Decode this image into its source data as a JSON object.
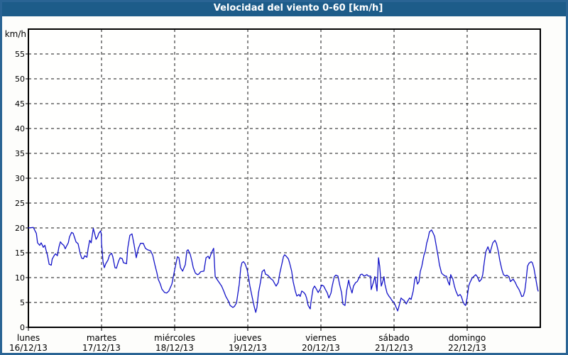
{
  "window": {
    "title": "Velocidad del viento 0-60 [km/h]"
  },
  "colors": {
    "titlebar_bg": "#1d5c89",
    "frame_border": "#2a6494",
    "title_text": "#ffffff",
    "page_bg": "#fdfdfb",
    "plot_bg": "#fffffe",
    "grid": "#161616",
    "axis": "#000000",
    "tick_text": "#000000",
    "line": "#1414c8"
  },
  "chart_data": {
    "type": "line",
    "title": "Velocidad del viento 0-60 [km/h]",
    "ylabel": "km/h",
    "ylim": [
      0,
      60
    ],
    "yticks": [
      0,
      5,
      10,
      15,
      20,
      25,
      30,
      35,
      40,
      45,
      50,
      55
    ],
    "grid": "dashed",
    "legend": "none",
    "x_axis": {
      "unit": "hours",
      "range_hours": [
        0,
        168
      ],
      "days": [
        {
          "name": "lunes",
          "date": "16/12/13"
        },
        {
          "name": "martes",
          "date": "17/12/13"
        },
        {
          "name": "miércoles",
          "date": "18/12/13"
        },
        {
          "name": "jueves",
          "date": "19/12/13"
        },
        {
          "name": "viernes",
          "date": "20/12/13"
        },
        {
          "name": "sábado",
          "date": "21/12/13"
        },
        {
          "name": "domingo",
          "date": "22/12/13"
        }
      ]
    },
    "series": [
      {
        "name": "velocidad del viento",
        "color": "#1414c8",
        "points": [
          [
            0,
            20.0
          ],
          [
            1.6,
            20.1
          ],
          [
            2.6,
            18.9
          ],
          [
            3.0,
            17.0
          ],
          [
            3.7,
            16.5
          ],
          [
            4.2,
            17.0
          ],
          [
            4.9,
            16.1
          ],
          [
            5.4,
            16.5
          ],
          [
            5.8,
            15.5
          ],
          [
            6.3,
            14.4
          ],
          [
            6.8,
            12.7
          ],
          [
            7.5,
            12.5
          ],
          [
            7.8,
            13.7
          ],
          [
            8.4,
            14.4
          ],
          [
            8.9,
            14.8
          ],
          [
            9.5,
            14.4
          ],
          [
            10.0,
            16.1
          ],
          [
            10.5,
            17.2
          ],
          [
            11.0,
            16.8
          ],
          [
            11.6,
            16.5
          ],
          [
            12.1,
            15.8
          ],
          [
            12.4,
            16.2
          ],
          [
            13.1,
            17.0
          ],
          [
            13.5,
            18.2
          ],
          [
            14.2,
            19.1
          ],
          [
            14.7,
            18.9
          ],
          [
            15.2,
            18.0
          ],
          [
            15.6,
            17.2
          ],
          [
            16.3,
            16.8
          ],
          [
            17.0,
            14.8
          ],
          [
            17.5,
            13.9
          ],
          [
            18.0,
            13.8
          ],
          [
            18.5,
            14.4
          ],
          [
            19.2,
            14.1
          ],
          [
            19.6,
            15.8
          ],
          [
            20.1,
            17.5
          ],
          [
            20.6,
            17.0
          ],
          [
            21.3,
            19.9
          ],
          [
            21.8,
            18.7
          ],
          [
            22.2,
            17.7
          ],
          [
            22.7,
            18.2
          ],
          [
            23.1,
            18.9
          ],
          [
            23.7,
            19.4
          ],
          [
            23.9,
            18.8
          ],
          [
            24.0,
            17.0
          ],
          [
            24.5,
            13.2
          ],
          [
            24.9,
            12.0
          ],
          [
            25.4,
            12.8
          ],
          [
            26.1,
            13.5
          ],
          [
            26.6,
            14.5
          ],
          [
            27.3,
            14.9
          ],
          [
            27.7,
            14.2
          ],
          [
            28.4,
            12.0
          ],
          [
            28.9,
            11.9
          ],
          [
            29.6,
            13.3
          ],
          [
            30.1,
            14.0
          ],
          [
            30.8,
            13.8
          ],
          [
            31.2,
            13.0
          ],
          [
            32.2,
            12.8
          ],
          [
            32.6,
            15.9
          ],
          [
            33.3,
            18.5
          ],
          [
            34.0,
            18.8
          ],
          [
            34.7,
            16.6
          ],
          [
            35.4,
            14.0
          ],
          [
            36.1,
            15.9
          ],
          [
            36.8,
            16.9
          ],
          [
            37.7,
            16.9
          ],
          [
            38.4,
            15.9
          ],
          [
            39.1,
            15.6
          ],
          [
            40.1,
            15.4
          ],
          [
            40.8,
            14.5
          ],
          [
            41.5,
            12.6
          ],
          [
            42.2,
            10.9
          ],
          [
            42.6,
            9.7
          ],
          [
            43.3,
            8.7
          ],
          [
            43.8,
            7.7
          ],
          [
            44.7,
            7.0
          ],
          [
            45.4,
            6.9
          ],
          [
            46.1,
            7.3
          ],
          [
            47.1,
            8.7
          ],
          [
            47.8,
            10.9
          ],
          [
            48.5,
            13.0
          ],
          [
            48.9,
            14.2
          ],
          [
            49.4,
            14.0
          ],
          [
            49.9,
            12.0
          ],
          [
            50.6,
            11.3
          ],
          [
            51.0,
            11.9
          ],
          [
            51.5,
            12.6
          ],
          [
            52.0,
            15.4
          ],
          [
            52.4,
            15.6
          ],
          [
            53.1,
            14.7
          ],
          [
            53.6,
            13.5
          ],
          [
            54.1,
            12.0
          ],
          [
            54.8,
            10.9
          ],
          [
            55.5,
            10.6
          ],
          [
            55.9,
            10.7
          ],
          [
            56.6,
            11.2
          ],
          [
            57.6,
            11.3
          ],
          [
            58.3,
            14.0
          ],
          [
            59.0,
            14.3
          ],
          [
            59.4,
            13.8
          ],
          [
            60.1,
            15.0
          ],
          [
            60.8,
            15.9
          ],
          [
            61.3,
            10.2
          ],
          [
            62.4,
            9.2
          ],
          [
            63.4,
            8.3
          ],
          [
            64.1,
            7.3
          ],
          [
            64.8,
            6.2
          ],
          [
            65.7,
            5.2
          ],
          [
            66.2,
            4.4
          ],
          [
            67.1,
            4.0
          ],
          [
            67.6,
            4.2
          ],
          [
            68.3,
            4.9
          ],
          [
            69.2,
            8.7
          ],
          [
            69.7,
            12.0
          ],
          [
            70.1,
            13.0
          ],
          [
            70.6,
            13.2
          ],
          [
            71.1,
            12.8
          ],
          [
            71.8,
            11.6
          ],
          [
            72.2,
            10.2
          ],
          [
            72.7,
            8.3
          ],
          [
            73.4,
            6.2
          ],
          [
            74.1,
            4.2
          ],
          [
            74.6,
            3.0
          ],
          [
            75.0,
            4.0
          ],
          [
            75.5,
            6.9
          ],
          [
            76.2,
            9.2
          ],
          [
            76.7,
            11.2
          ],
          [
            77.4,
            11.6
          ],
          [
            77.8,
            10.7
          ],
          [
            78.5,
            10.5
          ],
          [
            79.0,
            10.2
          ],
          [
            79.7,
            9.7
          ],
          [
            80.2,
            9.5
          ],
          [
            80.9,
            8.7
          ],
          [
            81.3,
            8.3
          ],
          [
            82.0,
            9.0
          ],
          [
            82.5,
            10.9
          ],
          [
            83.2,
            12.8
          ],
          [
            83.7,
            14.2
          ],
          [
            84.1,
            14.6
          ],
          [
            84.6,
            14.3
          ],
          [
            85.3,
            13.8
          ],
          [
            85.7,
            13.0
          ],
          [
            86.4,
            11.3
          ],
          [
            86.9,
            9.2
          ],
          [
            87.6,
            7.3
          ],
          [
            88.1,
            6.3
          ],
          [
            88.8,
            6.6
          ],
          [
            89.2,
            6.2
          ],
          [
            89.7,
            7.3
          ],
          [
            90.4,
            7.0
          ],
          [
            90.9,
            6.6
          ],
          [
            91.3,
            5.9
          ],
          [
            91.8,
            4.4
          ],
          [
            92.5,
            3.7
          ],
          [
            92.7,
            4.9
          ],
          [
            93.4,
            7.7
          ],
          [
            93.9,
            8.3
          ],
          [
            94.6,
            7.6
          ],
          [
            95.1,
            7.0
          ],
          [
            95.8,
            7.7
          ],
          [
            96.2,
            8.5
          ],
          [
            96.9,
            8.3
          ],
          [
            97.4,
            7.7
          ],
          [
            98.1,
            6.9
          ],
          [
            98.6,
            5.9
          ],
          [
            99.3,
            6.9
          ],
          [
            99.7,
            8.3
          ],
          [
            100.4,
            10.2
          ],
          [
            100.9,
            10.5
          ],
          [
            101.6,
            10.3
          ],
          [
            102.1,
            8.7
          ],
          [
            102.8,
            6.9
          ],
          [
            103.2,
            4.7
          ],
          [
            103.9,
            4.4
          ],
          [
            104.4,
            7.3
          ],
          [
            105.1,
            9.5
          ],
          [
            105.5,
            8.3
          ],
          [
            106.2,
            6.9
          ],
          [
            106.7,
            8.3
          ],
          [
            107.4,
            9.0
          ],
          [
            107.9,
            9.2
          ],
          [
            108.3,
            9.7
          ],
          [
            109.0,
            10.6
          ],
          [
            109.5,
            10.7
          ],
          [
            110.2,
            10.3
          ],
          [
            111.1,
            10.6
          ],
          [
            111.6,
            10.3
          ],
          [
            112.3,
            10.3
          ],
          [
            112.5,
            7.6
          ],
          [
            113.2,
            9.0
          ],
          [
            113.7,
            10.2
          ],
          [
            114.4,
            7.3
          ],
          [
            114.9,
            14.0
          ],
          [
            115.3,
            12.3
          ],
          [
            115.8,
            8.3
          ],
          [
            116.3,
            9.2
          ],
          [
            116.7,
            10.2
          ],
          [
            117.0,
            8.7
          ],
          [
            117.7,
            6.9
          ],
          [
            118.4,
            6.2
          ],
          [
            118.8,
            5.9
          ],
          [
            119.3,
            5.4
          ],
          [
            120.0,
            5.0
          ],
          [
            120.7,
            4.0
          ],
          [
            121.2,
            3.3
          ],
          [
            121.6,
            4.2
          ],
          [
            122.3,
            5.9
          ],
          [
            122.8,
            5.6
          ],
          [
            123.3,
            5.4
          ],
          [
            124.0,
            4.7
          ],
          [
            124.4,
            5.2
          ],
          [
            125.1,
            5.9
          ],
          [
            125.6,
            5.6
          ],
          [
            126.3,
            7.3
          ],
          [
            126.8,
            9.7
          ],
          [
            127.2,
            10.2
          ],
          [
            127.7,
            8.7
          ],
          [
            128.2,
            9.2
          ],
          [
            128.6,
            11.2
          ],
          [
            129.1,
            12.3
          ],
          [
            129.8,
            14.5
          ],
          [
            130.3,
            15.4
          ],
          [
            130.7,
            16.9
          ],
          [
            131.2,
            18.0
          ],
          [
            131.6,
            19.2
          ],
          [
            132.3,
            19.6
          ],
          [
            132.8,
            19.0
          ],
          [
            133.3,
            18.3
          ],
          [
            133.7,
            16.9
          ],
          [
            134.4,
            14.5
          ],
          [
            134.9,
            12.6
          ],
          [
            135.6,
            10.9
          ],
          [
            136.1,
            10.6
          ],
          [
            136.8,
            10.3
          ],
          [
            137.2,
            10.3
          ],
          [
            137.7,
            9.2
          ],
          [
            138.2,
            8.5
          ],
          [
            138.6,
            10.6
          ],
          [
            139.3,
            9.7
          ],
          [
            139.8,
            8.3
          ],
          [
            140.3,
            7.3
          ],
          [
            141.0,
            6.3
          ],
          [
            141.7,
            6.6
          ],
          [
            142.1,
            6.2
          ],
          [
            142.6,
            5.2
          ],
          [
            143.1,
            4.6
          ],
          [
            143.5,
            4.4
          ],
          [
            144.0,
            6.0
          ],
          [
            144.5,
            8.3
          ],
          [
            144.9,
            9.0
          ],
          [
            145.6,
            9.9
          ],
          [
            146.3,
            10.3
          ],
          [
            146.8,
            10.6
          ],
          [
            147.3,
            10.2
          ],
          [
            148.0,
            9.2
          ],
          [
            148.7,
            9.7
          ],
          [
            149.1,
            10.6
          ],
          [
            149.6,
            13.0
          ],
          [
            150.1,
            15.2
          ],
          [
            150.8,
            16.2
          ],
          [
            151.5,
            15.0
          ],
          [
            152.4,
            17.0
          ],
          [
            153.1,
            17.5
          ],
          [
            153.6,
            16.9
          ],
          [
            154.2,
            15.3
          ],
          [
            154.7,
            13.5
          ],
          [
            155.4,
            11.6
          ],
          [
            155.9,
            10.6
          ],
          [
            156.6,
            10.3
          ],
          [
            157.0,
            10.5
          ],
          [
            157.7,
            10.2
          ],
          [
            158.2,
            9.2
          ],
          [
            158.7,
            9.5
          ],
          [
            159.1,
            9.7
          ],
          [
            159.8,
            9.0
          ],
          [
            160.3,
            8.3
          ],
          [
            161.0,
            7.6
          ],
          [
            161.5,
            6.9
          ],
          [
            161.9,
            6.2
          ],
          [
            162.4,
            6.3
          ],
          [
            162.9,
            7.3
          ],
          [
            163.3,
            9.2
          ],
          [
            163.8,
            12.3
          ],
          [
            164.3,
            12.9
          ],
          [
            165.0,
            13.2
          ],
          [
            165.4,
            13.0
          ],
          [
            165.9,
            11.9
          ],
          [
            166.4,
            10.2
          ],
          [
            167.1,
            7.7
          ],
          [
            167.3,
            7.3
          ]
        ]
      }
    ]
  }
}
